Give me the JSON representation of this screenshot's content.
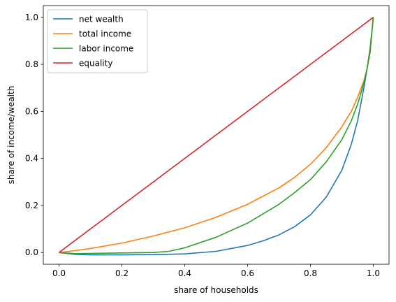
{
  "chart_data": {
    "type": "line",
    "title": "",
    "xlabel": "share of households",
    "ylabel": "share of income/wealth",
    "xlim": [
      -0.05,
      1.05
    ],
    "ylim": [
      -0.05,
      1.05
    ],
    "xticks": [
      0.0,
      0.2,
      0.4,
      0.6,
      0.8,
      1.0
    ],
    "xtick_labels": [
      "0.0",
      "0.2",
      "0.4",
      "0.6",
      "0.8",
      "1.0"
    ],
    "yticks": [
      0.0,
      0.2,
      0.4,
      0.6,
      0.8,
      1.0
    ],
    "ytick_labels": [
      "0.0",
      "0.2",
      "0.4",
      "0.6",
      "0.8",
      "1.0"
    ],
    "grid": false,
    "legend_position": "upper-left",
    "series": [
      {
        "name": "net wealth",
        "color": "#1f77b4",
        "x": [
          0.0,
          0.05,
          0.1,
          0.2,
          0.3,
          0.4,
          0.5,
          0.6,
          0.65,
          0.7,
          0.75,
          0.8,
          0.85,
          0.9,
          0.93,
          0.95,
          0.97,
          0.98,
          0.99,
          1.0
        ],
        "y": [
          0.0,
          -0.008,
          -0.01,
          -0.01,
          -0.009,
          -0.006,
          0.005,
          0.03,
          0.05,
          0.075,
          0.11,
          0.16,
          0.235,
          0.35,
          0.46,
          0.56,
          0.7,
          0.78,
          0.87,
          1.0
        ]
      },
      {
        "name": "total income",
        "color": "#ff7f0e",
        "x": [
          0.0,
          0.05,
          0.1,
          0.2,
          0.3,
          0.4,
          0.5,
          0.6,
          0.7,
          0.75,
          0.8,
          0.85,
          0.9,
          0.93,
          0.95,
          0.97,
          0.98,
          0.99,
          1.0
        ],
        "y": [
          0.0,
          0.008,
          0.017,
          0.04,
          0.07,
          0.105,
          0.15,
          0.205,
          0.275,
          0.32,
          0.375,
          0.445,
          0.535,
          0.6,
          0.66,
          0.73,
          0.78,
          0.85,
          1.0
        ]
      },
      {
        "name": "labor income",
        "color": "#2ca02c",
        "x": [
          0.0,
          0.05,
          0.1,
          0.2,
          0.3,
          0.35,
          0.4,
          0.5,
          0.6,
          0.7,
          0.75,
          0.8,
          0.85,
          0.9,
          0.93,
          0.95,
          0.97,
          0.98,
          0.99,
          1.0
        ],
        "y": [
          0.0,
          -0.005,
          -0.004,
          -0.002,
          0.0,
          0.005,
          0.02,
          0.065,
          0.125,
          0.205,
          0.255,
          0.31,
          0.385,
          0.48,
          0.56,
          0.63,
          0.72,
          0.78,
          0.86,
          1.0
        ]
      },
      {
        "name": "equality",
        "color": "#d62728",
        "x": [
          0.0,
          1.0
        ],
        "y": [
          0.0,
          1.0
        ]
      }
    ]
  }
}
